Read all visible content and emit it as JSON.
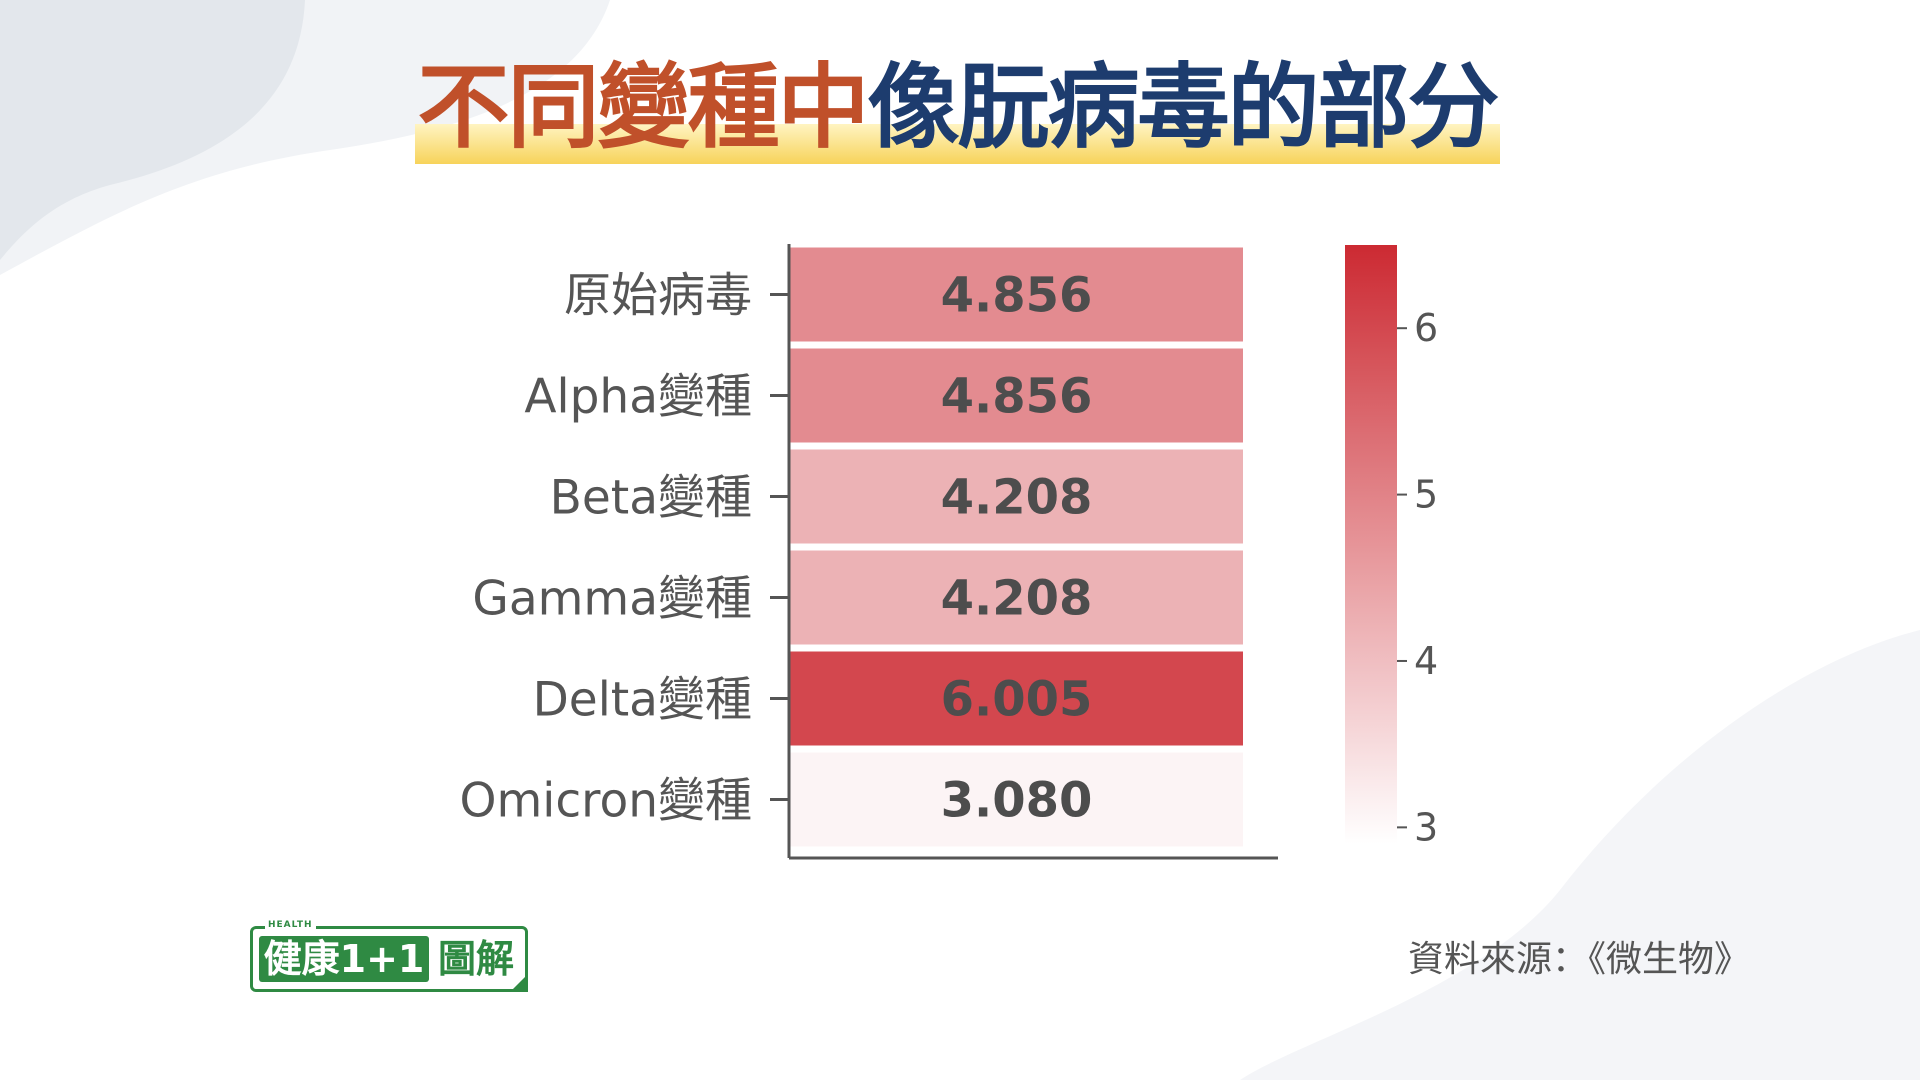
{
  "title": {
    "part1": "不同變種中",
    "part2": "像朊病毒的部分"
  },
  "chart_data": {
    "type": "heatmap",
    "title": "不同變種中像朊病毒的部分",
    "categories": [
      "原始病毒",
      "Alpha變種",
      "Beta變種",
      "Gamma變種",
      "Delta變種",
      "Omicron變種"
    ],
    "values": [
      4.856,
      4.856,
      4.208,
      4.208,
      6.005,
      3.08
    ],
    "value_labels": [
      "4.856",
      "4.856",
      "4.208",
      "4.208",
      "6.005",
      "3.080"
    ],
    "colorbar": {
      "range": [
        2.9,
        6.5
      ],
      "ticks": [
        6,
        5,
        4,
        3
      ],
      "tick_labels": [
        "6",
        "5",
        "4",
        "3"
      ],
      "low_color": "#ffffff",
      "high_color": "#cc2a32"
    }
  },
  "logo": {
    "tag": "HEALTH",
    "left": "健康1+1",
    "right": "圖解",
    "color": "#2f8a43"
  },
  "source": "資料來源：《微生物》"
}
